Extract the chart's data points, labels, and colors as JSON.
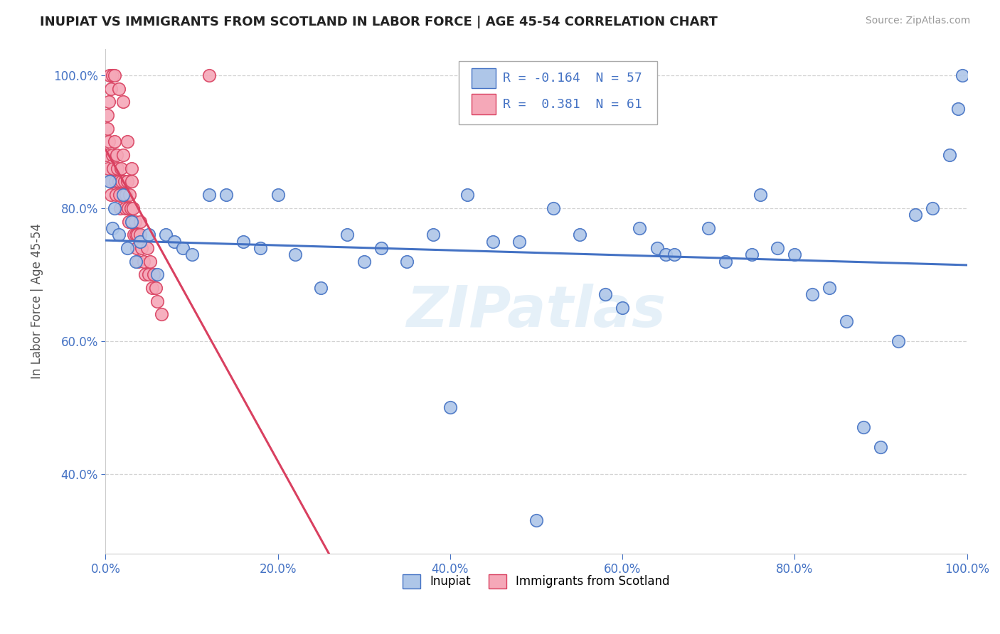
{
  "title": "INUPIAT VS IMMIGRANTS FROM SCOTLAND IN LABOR FORCE | AGE 45-54 CORRELATION CHART",
  "source": "Source: ZipAtlas.com",
  "ylabel": "In Labor Force | Age 45-54",
  "xlim": [
    0.0,
    1.0
  ],
  "ylim": [
    0.28,
    1.04
  ],
  "xticks": [
    0.0,
    0.2,
    0.4,
    0.6,
    0.8,
    1.0
  ],
  "yticks": [
    0.4,
    0.6,
    0.8,
    1.0
  ],
  "xticklabels": [
    "0.0%",
    "20.0%",
    "40.0%",
    "60.0%",
    "80.0%",
    "100.0%"
  ],
  "yticklabels": [
    "40.0%",
    "60.0%",
    "80.0%",
    "100.0%"
  ],
  "legend_labels": [
    "Inupiat",
    "Immigrants from Scotland"
  ],
  "r_inupiat": -0.164,
  "n_inupiat": 57,
  "r_scotland": 0.381,
  "n_scotland": 61,
  "inupiat_color": "#aec6e8",
  "scotland_color": "#f5a8b8",
  "inupiat_line_color": "#4472c4",
  "scotland_line_color": "#d94060",
  "watermark": "ZIPatlas",
  "background_color": "#ffffff",
  "inupiat_x": [
    0.005,
    0.008,
    0.01,
    0.015,
    0.02,
    0.025,
    0.03,
    0.035,
    0.04,
    0.05,
    0.06,
    0.07,
    0.08,
    0.09,
    0.1,
    0.12,
    0.14,
    0.16,
    0.18,
    0.2,
    0.22,
    0.25,
    0.28,
    0.3,
    0.32,
    0.35,
    0.38,
    0.4,
    0.42,
    0.45,
    0.48,
    0.5,
    0.52,
    0.55,
    0.58,
    0.6,
    0.62,
    0.64,
    0.65,
    0.66,
    0.7,
    0.72,
    0.75,
    0.76,
    0.78,
    0.8,
    0.82,
    0.84,
    0.86,
    0.88,
    0.9,
    0.92,
    0.94,
    0.96,
    0.98,
    0.99,
    0.995
  ],
  "inupiat_y": [
    0.84,
    0.77,
    0.8,
    0.76,
    0.82,
    0.74,
    0.78,
    0.72,
    0.75,
    0.76,
    0.7,
    0.76,
    0.75,
    0.74,
    0.73,
    0.82,
    0.82,
    0.75,
    0.74,
    0.82,
    0.73,
    0.68,
    0.76,
    0.72,
    0.74,
    0.72,
    0.76,
    0.5,
    0.82,
    0.75,
    0.75,
    0.33,
    0.8,
    0.76,
    0.67,
    0.65,
    0.77,
    0.74,
    0.73,
    0.73,
    0.77,
    0.72,
    0.73,
    0.82,
    0.74,
    0.73,
    0.67,
    0.68,
    0.63,
    0.47,
    0.44,
    0.6,
    0.79,
    0.8,
    0.88,
    0.95,
    1.0
  ],
  "scotland_x": [
    0.001,
    0.002,
    0.003,
    0.004,
    0.005,
    0.006,
    0.007,
    0.008,
    0.009,
    0.01,
    0.011,
    0.012,
    0.013,
    0.014,
    0.015,
    0.016,
    0.017,
    0.018,
    0.019,
    0.02,
    0.021,
    0.022,
    0.023,
    0.024,
    0.025,
    0.026,
    0.027,
    0.028,
    0.029,
    0.03,
    0.031,
    0.032,
    0.033,
    0.034,
    0.035,
    0.036,
    0.037,
    0.038,
    0.04,
    0.042,
    0.044,
    0.046,
    0.048,
    0.05,
    0.052,
    0.054,
    0.056,
    0.058,
    0.06,
    0.065,
    0.002,
    0.004,
    0.006,
    0.008,
    0.01,
    0.015,
    0.02,
    0.025,
    0.03,
    0.04,
    0.12
  ],
  "scotland_y": [
    0.88,
    0.92,
    0.86,
    0.9,
    1.0,
    0.82,
    0.84,
    0.88,
    0.86,
    0.9,
    0.84,
    0.82,
    0.88,
    0.86,
    0.84,
    0.82,
    0.8,
    0.86,
    0.84,
    0.88,
    0.82,
    0.84,
    0.8,
    0.82,
    0.84,
    0.8,
    0.78,
    0.82,
    0.8,
    0.84,
    0.78,
    0.8,
    0.76,
    0.78,
    0.76,
    0.74,
    0.76,
    0.72,
    0.76,
    0.74,
    0.72,
    0.7,
    0.74,
    0.7,
    0.72,
    0.68,
    0.7,
    0.68,
    0.66,
    0.64,
    0.94,
    0.96,
    0.98,
    1.0,
    1.0,
    0.98,
    0.96,
    0.9,
    0.86,
    0.78,
    1.0
  ]
}
